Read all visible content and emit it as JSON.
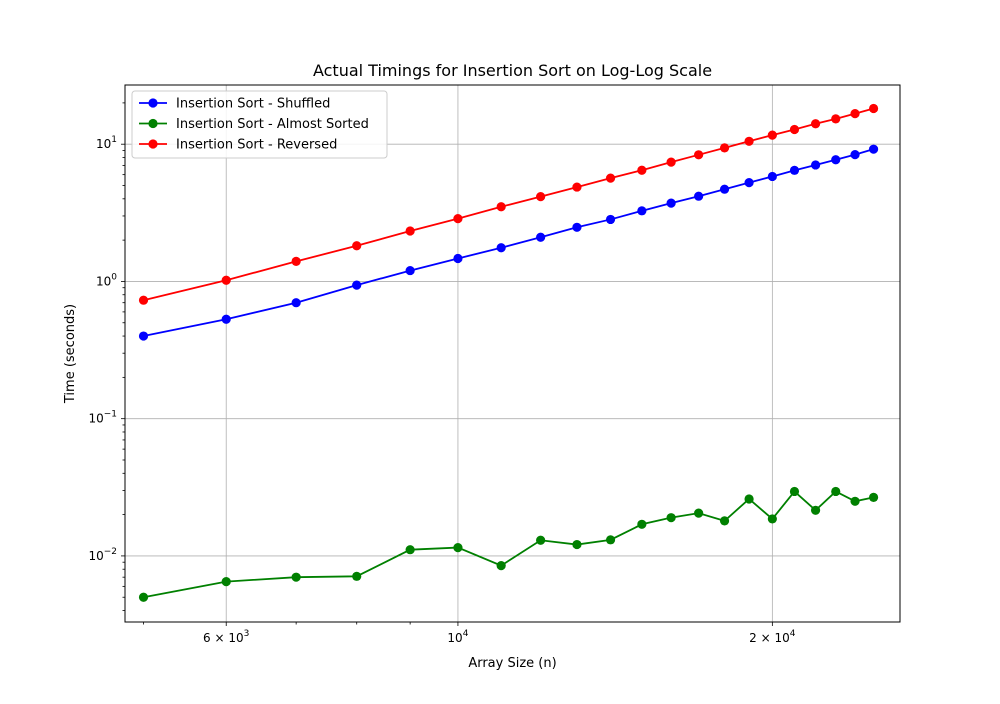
{
  "chart_data": {
    "type": "line",
    "title": "Actual Timings for Insertion Sort on Log-Log Scale",
    "xlabel": "Array Size (n)",
    "ylabel": "Time (seconds)",
    "xscale": "log",
    "yscale": "log",
    "xlim": [
      4800,
      26500
    ],
    "ylim": [
      0.0033,
      27
    ],
    "grid": "major",
    "legend_position": "top-left",
    "x_ticks": [
      {
        "value": 6000,
        "base": "6 × 10",
        "exp": "3"
      },
      {
        "value": 10000,
        "base": "10",
        "exp": "4"
      },
      {
        "value": 20000,
        "base": "2 × 10",
        "exp": "4"
      }
    ],
    "y_ticks": [
      {
        "value": 0.01,
        "base": "10",
        "exp": "−2"
      },
      {
        "value": 0.1,
        "base": "10",
        "exp": "−1"
      },
      {
        "value": 1,
        "base": "10",
        "exp": "0"
      },
      {
        "value": 10,
        "base": "10",
        "exp": "1"
      }
    ],
    "x": [
      5000,
      6000,
      7000,
      8000,
      9000,
      10000,
      11000,
      12000,
      13000,
      14000,
      15000,
      16000,
      17000,
      18000,
      19000,
      20000,
      21000,
      22000,
      23000,
      24000,
      25000
    ],
    "series": [
      {
        "name": "Insertion Sort - Shuffled",
        "color": "#0000ff",
        "values": [
          0.4,
          0.53,
          0.7,
          0.94,
          1.2,
          1.47,
          1.76,
          2.1,
          2.48,
          2.83,
          3.27,
          3.72,
          4.18,
          4.7,
          5.25,
          5.82,
          6.45,
          7.06,
          7.7,
          8.4,
          9.2
        ]
      },
      {
        "name": "Insertion Sort - Almost Sorted",
        "color": "#008000",
        "values": [
          0.005,
          0.0065,
          0.007,
          0.0071,
          0.0111,
          0.0115,
          0.0085,
          0.013,
          0.0121,
          0.0131,
          0.017,
          0.019,
          0.0205,
          0.018,
          0.026,
          0.0186,
          0.0295,
          0.0215,
          0.0295,
          0.025,
          0.0267
        ]
      },
      {
        "name": "Insertion Sort - Reversed",
        "color": "#ff0000",
        "values": [
          0.73,
          1.02,
          1.4,
          1.82,
          2.33,
          2.87,
          3.5,
          4.15,
          4.87,
          5.66,
          6.46,
          7.4,
          8.37,
          9.4,
          10.5,
          11.65,
          12.8,
          14.1,
          15.3,
          16.7,
          18.2
        ]
      }
    ]
  }
}
